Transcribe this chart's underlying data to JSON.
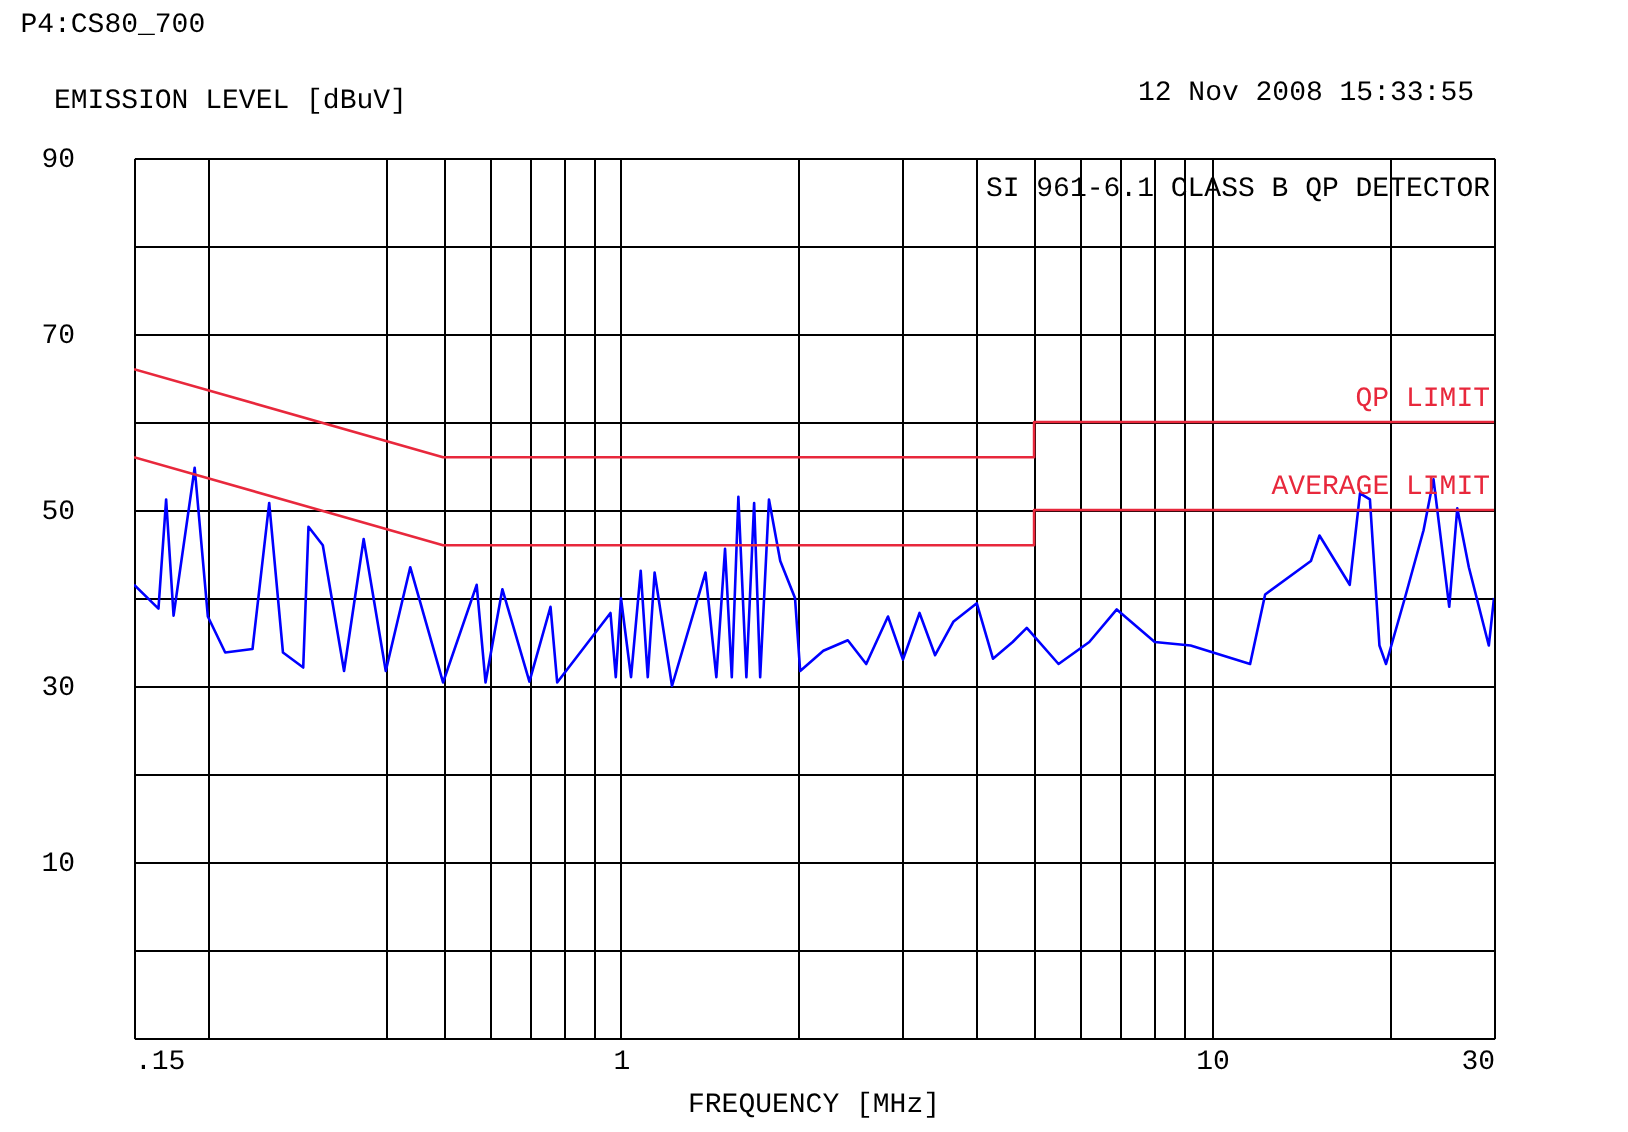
{
  "chart_data": {
    "type": "line",
    "title": "P4:CS80_700",
    "ylabel": "EMISSION LEVEL [dBuV]",
    "xlabel": "FREQUENCY [MHz]",
    "annotations": [
      "12 Nov 2008   15:33:55",
      "SI 961-6.1 CLASS B QP DETECTOR"
    ],
    "log": "x",
    "grid": true,
    "marker": "none",
    "line_style": "solid",
    "xlim": [
      0.15,
      30
    ],
    "ylim": [
      -10,
      90
    ],
    "xticks": [
      {
        "value": 0.15,
        "label": ".15"
      },
      {
        "value": 0.2,
        "label": null
      },
      {
        "value": 0.4,
        "label": null
      },
      {
        "value": 0.5,
        "label": null
      },
      {
        "value": 0.6,
        "label": null
      },
      {
        "value": 0.7,
        "label": null
      },
      {
        "value": 0.8,
        "label": null
      },
      {
        "value": 0.9,
        "label": null
      },
      1,
      {
        "value": 2,
        "label": null
      },
      {
        "value": 3,
        "label": null
      },
      {
        "value": 4,
        "label": null
      },
      {
        "value": 5,
        "label": null
      },
      {
        "value": 6,
        "label": null
      },
      {
        "value": 7,
        "label": null
      },
      {
        "value": 8,
        "label": null
      },
      {
        "value": 9,
        "label": null
      },
      10,
      {
        "value": 20,
        "label": null
      },
      30
    ],
    "yticks": [
      {
        "value": -10,
        "label": null
      },
      {
        "value": 0,
        "label": null
      },
      10,
      {
        "value": 20,
        "label": null
      },
      30,
      {
        "value": 40,
        "label": null
      },
      50,
      {
        "value": 60,
        "label": null
      },
      70,
      {
        "value": 80,
        "label": null
      },
      90
    ],
    "series": [
      {
        "color": "#0000ff",
        "x": [
          0.15,
          0.165,
          0.17,
          0.175,
          0.19,
          0.2,
          0.214,
          0.238,
          0.254,
          0.268,
          0.29,
          0.296,
          0.313,
          0.34,
          0.367,
          0.4,
          0.44,
          0.5,
          0.57,
          0.59,
          0.63,
          0.7,
          0.76,
          0.78,
          0.96,
          0.98,
          1.0,
          1.04,
          1.08,
          1.11,
          1.14,
          1.22,
          1.39,
          1.45,
          1.5,
          1.54,
          1.58,
          1.63,
          1.68,
          1.72,
          1.78,
          1.86,
          1.97,
          2.01,
          2.2,
          2.42,
          2.6,
          2.83,
          3.0,
          3.2,
          3.4,
          3.65,
          4.0,
          4.26,
          4.6,
          4.86,
          5.5,
          6.2,
          6.9,
          8.0,
          9.2,
          11.6,
          12.3,
          14.7,
          15.2,
          17.1,
          17.8,
          18.5,
          19.2,
          19.7,
          21.2,
          22.8,
          23.7,
          25.2,
          26,
          27.2,
          29.4,
          30
        ],
        "values": [
          41.5,
          38.8,
          51.2,
          38,
          54.8,
          37.9,
          33.8,
          34.2,
          50.8,
          33.8,
          32.1,
          48.1,
          46,
          31.7,
          46.7,
          31.7,
          43.5,
          30.4,
          41.5,
          30.4,
          41,
          30.5,
          39,
          30.4,
          38.3,
          31,
          40,
          31,
          43.1,
          31,
          42.9,
          30,
          42.9,
          31,
          45.6,
          31,
          51.5,
          31,
          50.8,
          31,
          51.2,
          44.2,
          40,
          31.7,
          34,
          35.2,
          32.5,
          37.9,
          33,
          38.3,
          33.5,
          37.3,
          39.4,
          33.1,
          35,
          36.6,
          32.5,
          35,
          38.7,
          35,
          34.6,
          32.5,
          40.4,
          44.2,
          47.1,
          41.5,
          51.9,
          51.2,
          34.6,
          32.5,
          40,
          47.7,
          53.5,
          39,
          50.2,
          43.5,
          34.6,
          40
        ]
      },
      {
        "name": "QP LIMIT",
        "color": "#e8283c",
        "x": [
          0.15,
          0.5,
          5,
          5,
          30
        ],
        "values": [
          66,
          56,
          56,
          60,
          60
        ]
      },
      {
        "name": "AVERAGE LIMIT",
        "color": "#e8283c",
        "x": [
          0.15,
          0.5,
          5,
          5,
          30
        ],
        "values": [
          56,
          46,
          46,
          50,
          50
        ]
      }
    ]
  }
}
